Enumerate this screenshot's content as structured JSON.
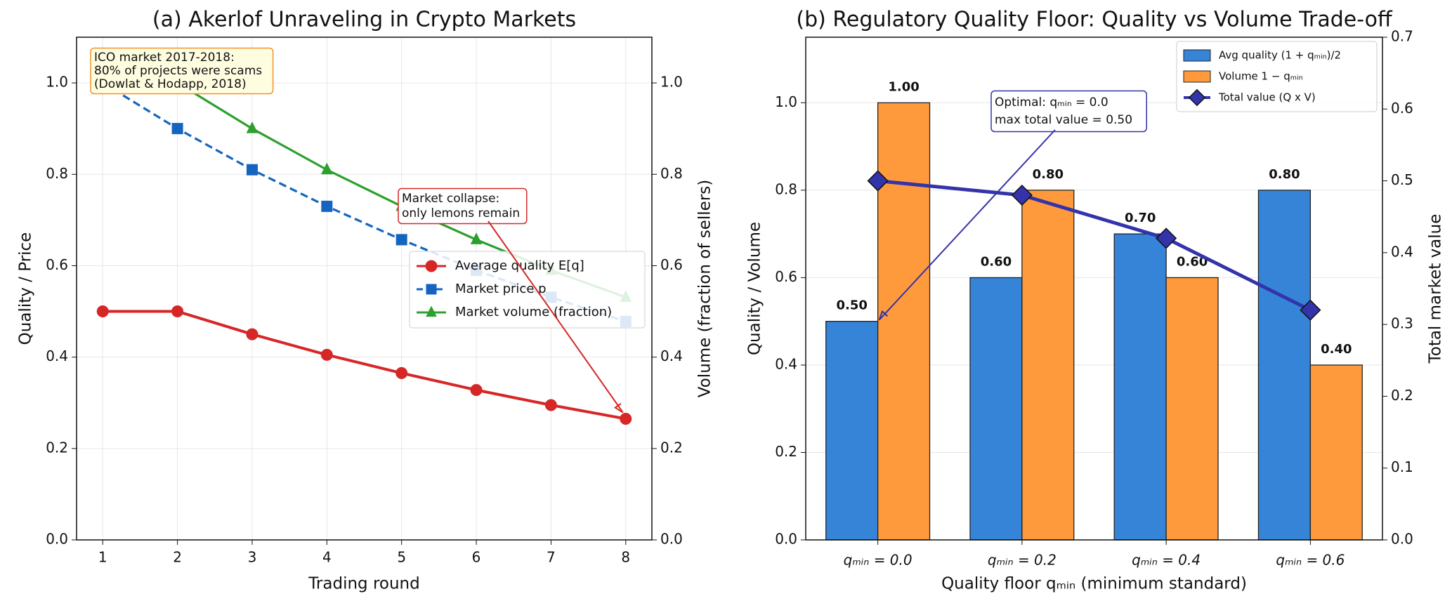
{
  "chart_data": [
    {
      "type": "line",
      "title": "(a) Akerlof Unraveling in Crypto Markets",
      "xlabel": "Trading round",
      "ylabel": "Quality / Price",
      "y2label": "Volume (fraction of sellers)",
      "x": [
        1,
        2,
        3,
        4,
        5,
        6,
        7,
        8
      ],
      "series": [
        {
          "name": "Average quality E[q]",
          "color": "#d62728",
          "marker": "circle",
          "linestyle": "solid",
          "axis": "y",
          "values": [
            0.5,
            0.5,
            0.45,
            0.405,
            0.365,
            0.328,
            0.295,
            0.265
          ]
        },
        {
          "name": "Market price p",
          "color": "#1565c0",
          "marker": "square",
          "linestyle": "dashed",
          "axis": "y",
          "values": [
            1.0,
            0.9,
            0.81,
            0.73,
            0.657,
            0.59,
            0.531,
            0.478
          ]
        },
        {
          "name": "Market volume (fraction)",
          "color": "#2ca02c",
          "marker": "triangle",
          "linestyle": "solid",
          "axis": "y2",
          "values": [
            1.0,
            1.0,
            0.9,
            0.81,
            0.73,
            0.657,
            0.59,
            0.531
          ]
        }
      ],
      "xlim": [
        0.65,
        8.35
      ],
      "xticks": [
        1,
        2,
        3,
        4,
        5,
        6,
        7,
        8
      ],
      "ylim": [
        0,
        1.1
      ],
      "yticks": [
        {
          "value": 0,
          "label": "0.0"
        },
        0.2,
        0.4,
        0.6,
        0.8,
        {
          "value": 1,
          "label": "1.0"
        }
      ],
      "y2lim": [
        0,
        1.1
      ],
      "y2ticks": [
        {
          "value": 0,
          "label": "0.0"
        },
        0.2,
        0.4,
        0.6,
        0.8,
        {
          "value": 1,
          "label": "1.0"
        }
      ],
      "grid": true,
      "legend": "center right",
      "annotations": [
        {
          "text": [
            "ICO market 2017-2018:",
            "80% of projects were scams",
            "(Dowlat & Hodapp, 2018)"
          ]
        },
        {
          "text": [
            "Market collapse:",
            "only lemons remain"
          ]
        }
      ]
    },
    {
      "type": "bar",
      "title": "(b) Regulatory Quality Floor: Quality vs Volume Trade-off",
      "xlabel": "Quality floor qₘᵢₙ (minimum standard)",
      "ylabel": "Quality / Volume",
      "y2label": "Total market value",
      "categories": [
        "qₘᵢₙ = 0.0",
        "qₘᵢₙ = 0.2",
        "qₘᵢₙ = 0.4",
        "qₘᵢₙ = 0.6"
      ],
      "series": [
        {
          "name": "Avg quality (1 + qₘᵢₙ)/2",
          "type": "bar",
          "color": "#3584d8",
          "label_color": "#1565c0",
          "values": [
            0.5,
            0.6,
            0.7,
            0.8
          ],
          "value_labels": [
            "0.50",
            "0.60",
            "0.70",
            "0.80"
          ]
        },
        {
          "name": "Volume 1 − qₘᵢₙ",
          "type": "bar",
          "color": "#ff9a3c",
          "label_color": "#f57c00",
          "values": [
            1.0,
            0.8,
            0.6,
            0.4
          ],
          "value_labels": [
            "1.00",
            "0.80",
            "0.60",
            "0.40"
          ]
        },
        {
          "name": "Total value (Q x V)",
          "type": "line",
          "color": "#3333aa",
          "marker": "diamond",
          "axis": "y2",
          "values": [
            0.5,
            0.48,
            0.42,
            0.32
          ]
        }
      ],
      "ylim": [
        0,
        1.15
      ],
      "yticks": [
        {
          "value": 0,
          "label": "0.0"
        },
        0.2,
        0.4,
        0.6,
        0.8,
        {
          "value": 1,
          "label": "1.0"
        }
      ],
      "y2lim": [
        0,
        0.7
      ],
      "y2ticks": [
        {
          "value": 0,
          "label": "0.0"
        },
        0.1,
        0.2,
        0.3,
        0.4,
        0.5,
        0.6,
        0.7
      ],
      "grid": true,
      "legend": "upper right",
      "annotations": [
        {
          "text": [
            "Optimal: qₘᵢₙ = 0.0",
            "max total value = 0.50"
          ]
        }
      ]
    }
  ]
}
